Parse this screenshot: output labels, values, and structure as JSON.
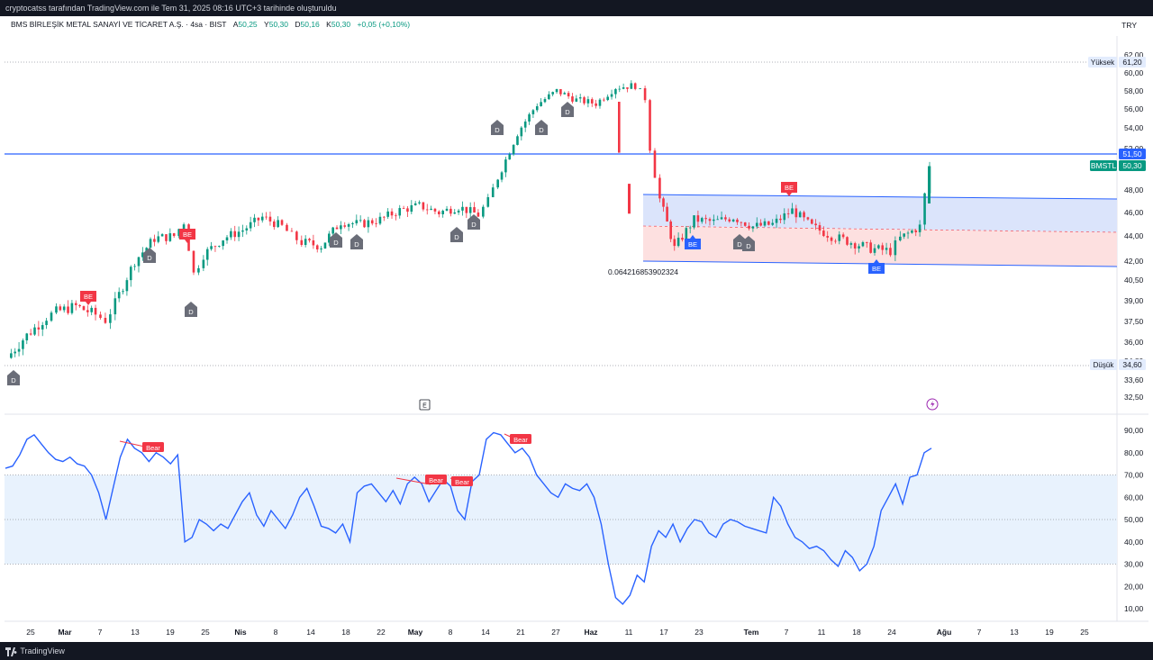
{
  "header": {
    "publisher_text": "cryptocatss tarafından TradingView.com ile Tem 31, 2025 08:16 UTC+3 tarihinde oluşturuldu",
    "currency": "TRY"
  },
  "legend": {
    "symbol": "BMS BİRLEŞİK METAL SANAYİ VE TİCARET A.Ş. · 4sa · BIST",
    "open_label": "A",
    "open_value": "50,25",
    "high_label": "Y",
    "high_value": "50,30",
    "low_label": "D",
    "low_value": "50,16",
    "close_label": "K",
    "close_value": "50,30",
    "change": "+0,05 (+0,10%)"
  },
  "footer": {
    "brand": "TradingView"
  },
  "colors": {
    "up": "#089981",
    "down": "#f23645",
    "line": "#2962ff",
    "rsi": "#2962ff",
    "band_blue": "#dbe4fb",
    "band_red": "#fde0e0",
    "rsi_band": "#e8f2fd"
  },
  "chart_data": [
    {
      "type": "candlestick",
      "price_axis": [
        "62,00",
        "60,00",
        "58,00",
        "56,00",
        "54,00",
        "52,00",
        "48,00",
        "46,00",
        "44,00",
        "42,00",
        "40,50",
        "39,00",
        "37,50",
        "36,00",
        "34,80",
        "33,60",
        "32,50"
      ],
      "ylim": [
        32.5,
        62.0
      ],
      "x_ticks": [
        "25",
        "Mar",
        "7",
        "13",
        "19",
        "25",
        "Nis",
        "8",
        "14",
        "18",
        "22",
        "May",
        "8",
        "14",
        "21",
        "27",
        "Haz",
        "11",
        "17",
        "23",
        "Tem",
        "7",
        "11",
        "18",
        "24",
        "Ağu",
        "7",
        "13",
        "19",
        "25"
      ],
      "close_path": [
        [
          0,
          35.0
        ],
        [
          4,
          36.5
        ],
        [
          8,
          37.8
        ],
        [
          10,
          38.2
        ],
        [
          14,
          38.6
        ],
        [
          18,
          38.0
        ],
        [
          20,
          37.6
        ],
        [
          22,
          38.8
        ],
        [
          26,
          42.0
        ],
        [
          30,
          43.8
        ],
        [
          34,
          44.0
        ],
        [
          36,
          45.2
        ],
        [
          38,
          41.0
        ],
        [
          40,
          42.5
        ],
        [
          44,
          43.8
        ],
        [
          48,
          44.5
        ],
        [
          52,
          45.6
        ],
        [
          56,
          44.8
        ],
        [
          58,
          44.0
        ],
        [
          60,
          43.5
        ],
        [
          64,
          43.2
        ],
        [
          68,
          45.2
        ],
        [
          72,
          45.0
        ],
        [
          76,
          45.4
        ],
        [
          80,
          46.2
        ],
        [
          84,
          46.6
        ],
        [
          88,
          46.0
        ],
        [
          92,
          46.5
        ],
        [
          96,
          45.8
        ],
        [
          98,
          47.0
        ],
        [
          100,
          49.2
        ],
        [
          104,
          53.5
        ],
        [
          108,
          56.5
        ],
        [
          112,
          58.0
        ],
        [
          116,
          57.0
        ],
        [
          120,
          56.6
        ],
        [
          124,
          58.4
        ],
        [
          128,
          58.6
        ],
        [
          130,
          57.2
        ],
        [
          131,
          51.8
        ],
        [
          133,
          47.2
        ],
        [
          136,
          43.0
        ],
        [
          140,
          45.4
        ],
        [
          144,
          45.2
        ],
        [
          148,
          45.6
        ],
        [
          152,
          44.8
        ],
        [
          156,
          45.0
        ],
        [
          160,
          46.2
        ],
        [
          164,
          44.8
        ],
        [
          168,
          44.0
        ],
        [
          172,
          43.5
        ],
        [
          176,
          43.0
        ],
        [
          180,
          42.8
        ],
        [
          182,
          43.8
        ],
        [
          186,
          44.8
        ],
        [
          188,
          50.3
        ]
      ],
      "last_price_label": "BMSTL",
      "last_price": "50,30",
      "hline_price": "51,50",
      "high_label": "Yüksek",
      "high_value": "61,20",
      "low_label": "Düşük",
      "low_value": "34,60",
      "channel_value_label": "0.06421685390232 4",
      "markers_d": [
        "D",
        "D",
        "D",
        "D",
        "D",
        "D",
        "D",
        "D",
        "D",
        "D",
        "D",
        "D"
      ],
      "markers_be_red": [
        "BE",
        "BE",
        "BE"
      ],
      "markers_be_blue": [
        "BE",
        "BE"
      ],
      "event_marker": "E"
    },
    {
      "type": "line",
      "name": "RSI",
      "axis": [
        "90,00",
        "80,00",
        "70,00",
        "60,00",
        "50,00",
        "40,00",
        "30,00",
        "20,00",
        "10,00"
      ],
      "ylim": [
        5,
        95
      ],
      "values": [
        73,
        74,
        79,
        86,
        88,
        84,
        80,
        77,
        76,
        78,
        75,
        74,
        70,
        62,
        50,
        64,
        78,
        86,
        82,
        80,
        76,
        80,
        78,
        75,
        79,
        40,
        42,
        50,
        48,
        45,
        48,
        46,
        52,
        58,
        62,
        52,
        47,
        54,
        50,
        46,
        52,
        60,
        64,
        56,
        47,
        46,
        44,
        48,
        40,
        62,
        65,
        66,
        62,
        58,
        63,
        57,
        66,
        69,
        66,
        58,
        63,
        68,
        65,
        54,
        50,
        67,
        70,
        86,
        89,
        88,
        84,
        80,
        82,
        78,
        70,
        66,
        62,
        60,
        66,
        64,
        63,
        66,
        60,
        48,
        30,
        15,
        12,
        16,
        25,
        22,
        38,
        45,
        42,
        48,
        40,
        46,
        50,
        49,
        44,
        42,
        48,
        50,
        49,
        47,
        46,
        45,
        44,
        60,
        56,
        48,
        42,
        40,
        37,
        38,
        36,
        32,
        29,
        36,
        33,
        27,
        30,
        38,
        54,
        60,
        66,
        57,
        69,
        70,
        80,
        82
      ],
      "bear_labels": [
        "Bear",
        "Bear",
        "Bear",
        "Bear"
      ]
    }
  ]
}
